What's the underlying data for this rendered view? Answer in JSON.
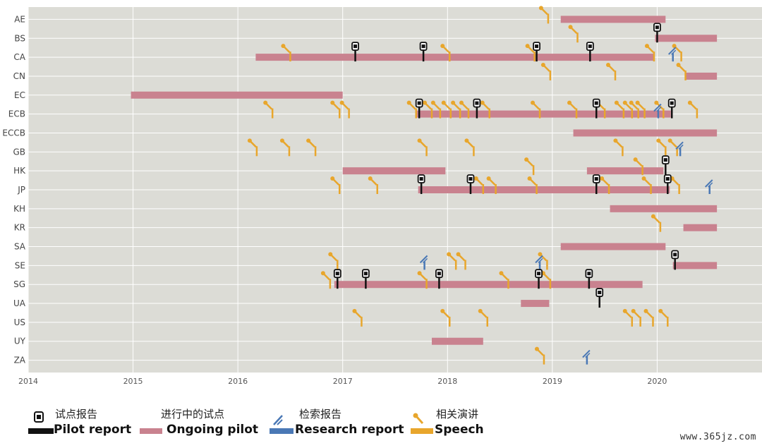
{
  "chart_data": {
    "type": "timeline",
    "xlim": [
      2014,
      2021
    ],
    "x_ticks": [
      "2014",
      "2015",
      "2016",
      "2017",
      "2018",
      "2019",
      "2020"
    ],
    "categories": [
      "AE",
      "BS",
      "CA",
      "CN",
      "EC",
      "ECB",
      "ECCB",
      "GB",
      "HK",
      "JP",
      "KH",
      "KR",
      "SA",
      "SE",
      "SG",
      "UA",
      "US",
      "UY",
      "ZA"
    ],
    "colors": {
      "background": "#dcdcd6",
      "grid": "#ffffff",
      "ongoing": "#c9828f",
      "speech": "#e8a62c",
      "research": "#4a78b5",
      "pilot": "#111111"
    },
    "ongoing_pilots": [
      {
        "cat": "AE",
        "start": 2019.08,
        "end": 2020.08
      },
      {
        "cat": "BS",
        "start": 2019.98,
        "end": 2020.57
      },
      {
        "cat": "CA",
        "start": 2016.17,
        "end": 2019.97
      },
      {
        "cat": "CN",
        "start": 2020.27,
        "end": 2020.57
      },
      {
        "cat": "EC",
        "start": 2014.98,
        "end": 2017.0
      },
      {
        "cat": "ECB",
        "start": 2017.7,
        "end": 2020.13
      },
      {
        "cat": "ECCB",
        "start": 2019.2,
        "end": 2020.57
      },
      {
        "cat": "HK",
        "start": 2017.0,
        "end": 2017.98
      },
      {
        "cat": "HK",
        "start": 2019.33,
        "end": 2020.06
      },
      {
        "cat": "JP",
        "start": 2017.72,
        "end": 2020.12
      },
      {
        "cat": "KH",
        "start": 2019.55,
        "end": 2020.57
      },
      {
        "cat": "KR",
        "start": 2020.25,
        "end": 2020.57
      },
      {
        "cat": "SA",
        "start": 2019.08,
        "end": 2020.08
      },
      {
        "cat": "SE",
        "start": 2020.15,
        "end": 2020.57
      },
      {
        "cat": "SG",
        "start": 2016.92,
        "end": 2019.86
      },
      {
        "cat": "UA",
        "start": 2018.7,
        "end": 2018.97
      },
      {
        "cat": "UY",
        "start": 2017.85,
        "end": 2018.34
      }
    ],
    "pilot_reports": [
      {
        "cat": "BS",
        "x": 2020.0
      },
      {
        "cat": "CA",
        "x": 2017.12
      },
      {
        "cat": "CA",
        "x": 2017.77
      },
      {
        "cat": "CA",
        "x": 2018.85
      },
      {
        "cat": "CA",
        "x": 2019.36
      },
      {
        "cat": "ECB",
        "x": 2017.73
      },
      {
        "cat": "ECB",
        "x": 2018.28
      },
      {
        "cat": "ECB",
        "x": 2019.42
      },
      {
        "cat": "ECB",
        "x": 2020.14
      },
      {
        "cat": "HK",
        "x": 2020.08
      },
      {
        "cat": "JP",
        "x": 2017.75
      },
      {
        "cat": "JP",
        "x": 2018.22
      },
      {
        "cat": "JP",
        "x": 2019.42
      },
      {
        "cat": "JP",
        "x": 2020.1
      },
      {
        "cat": "SE",
        "x": 2020.17
      },
      {
        "cat": "SG",
        "x": 2016.95
      },
      {
        "cat": "SG",
        "x": 2017.22
      },
      {
        "cat": "SG",
        "x": 2017.92
      },
      {
        "cat": "SG",
        "x": 2018.87
      },
      {
        "cat": "SG",
        "x": 2019.35
      },
      {
        "cat": "UA",
        "x": 2019.45
      }
    ],
    "research_reports": [
      {
        "cat": "CA",
        "x": 2020.15
      },
      {
        "cat": "ECB",
        "x": 2020.01
      },
      {
        "cat": "GB",
        "x": 2020.22
      },
      {
        "cat": "JP",
        "x": 2020.5
      },
      {
        "cat": "SE",
        "x": 2017.78
      },
      {
        "cat": "SE",
        "x": 2018.88
      },
      {
        "cat": "ZA",
        "x": 2019.33
      }
    ],
    "speeches": [
      {
        "cat": "AE",
        "x": 2018.96
      },
      {
        "cat": "BS",
        "x": 2019.24
      },
      {
        "cat": "CA",
        "x": 2016.5
      },
      {
        "cat": "CA",
        "x": 2018.02
      },
      {
        "cat": "CA",
        "x": 2018.83
      },
      {
        "cat": "CA",
        "x": 2019.97
      },
      {
        "cat": "CA",
        "x": 2020.23
      },
      {
        "cat": "CN",
        "x": 2018.98
      },
      {
        "cat": "CN",
        "x": 2019.6
      },
      {
        "cat": "CN",
        "x": 2020.27
      },
      {
        "cat": "ECB",
        "x": 2016.33
      },
      {
        "cat": "ECB",
        "x": 2016.97
      },
      {
        "cat": "ECB",
        "x": 2017.06
      },
      {
        "cat": "ECB",
        "x": 2017.7
      },
      {
        "cat": "ECB",
        "x": 2017.85
      },
      {
        "cat": "ECB",
        "x": 2017.93
      },
      {
        "cat": "ECB",
        "x": 2018.03
      },
      {
        "cat": "ECB",
        "x": 2018.12
      },
      {
        "cat": "ECB",
        "x": 2018.2
      },
      {
        "cat": "ECB",
        "x": 2018.4
      },
      {
        "cat": "ECB",
        "x": 2018.88
      },
      {
        "cat": "ECB",
        "x": 2019.23
      },
      {
        "cat": "ECB",
        "x": 2019.5
      },
      {
        "cat": "ECB",
        "x": 2019.68
      },
      {
        "cat": "ECB",
        "x": 2019.76
      },
      {
        "cat": "ECB",
        "x": 2019.82
      },
      {
        "cat": "ECB",
        "x": 2019.88
      },
      {
        "cat": "ECB",
        "x": 2020.06
      },
      {
        "cat": "ECB",
        "x": 2020.38
      },
      {
        "cat": "GB",
        "x": 2016.18
      },
      {
        "cat": "GB",
        "x": 2016.49
      },
      {
        "cat": "GB",
        "x": 2016.74
      },
      {
        "cat": "GB",
        "x": 2017.8
      },
      {
        "cat": "GB",
        "x": 2018.25
      },
      {
        "cat": "GB",
        "x": 2019.67
      },
      {
        "cat": "GB",
        "x": 2020.08
      },
      {
        "cat": "GB",
        "x": 2020.19
      },
      {
        "cat": "HK",
        "x": 2018.82
      },
      {
        "cat": "HK",
        "x": 2019.86
      },
      {
        "cat": "JP",
        "x": 2016.97
      },
      {
        "cat": "JP",
        "x": 2017.33
      },
      {
        "cat": "JP",
        "x": 2018.34
      },
      {
        "cat": "JP",
        "x": 2018.46
      },
      {
        "cat": "JP",
        "x": 2018.85
      },
      {
        "cat": "JP",
        "x": 2019.54
      },
      {
        "cat": "JP",
        "x": 2019.94
      },
      {
        "cat": "JP",
        "x": 2020.21
      },
      {
        "cat": "KR",
        "x": 2020.03
      },
      {
        "cat": "SE",
        "x": 2016.95
      },
      {
        "cat": "SE",
        "x": 2018.08
      },
      {
        "cat": "SE",
        "x": 2018.17
      },
      {
        "cat": "SE",
        "x": 2018.95
      },
      {
        "cat": "SG",
        "x": 2016.88
      },
      {
        "cat": "SG",
        "x": 2017.8
      },
      {
        "cat": "SG",
        "x": 2018.58
      },
      {
        "cat": "SG",
        "x": 2018.98
      },
      {
        "cat": "US",
        "x": 2017.18
      },
      {
        "cat": "US",
        "x": 2018.02
      },
      {
        "cat": "US",
        "x": 2018.38
      },
      {
        "cat": "US",
        "x": 2019.76
      },
      {
        "cat": "US",
        "x": 2019.84
      },
      {
        "cat": "US",
        "x": 2019.96
      },
      {
        "cat": "US",
        "x": 2020.1
      },
      {
        "cat": "ZA",
        "x": 2018.92
      }
    ]
  },
  "legend": {
    "pilot_cn": "试点报告",
    "pilot_en": "Pilot report",
    "ongoing_cn": "进行中的试点",
    "ongoing_en": "Ongoing pilot",
    "research_cn": "检索报告",
    "research_en": "Research report",
    "speech_cn": "相关演讲",
    "speech_en": "Speech"
  },
  "watermark": "www.365jz.com"
}
